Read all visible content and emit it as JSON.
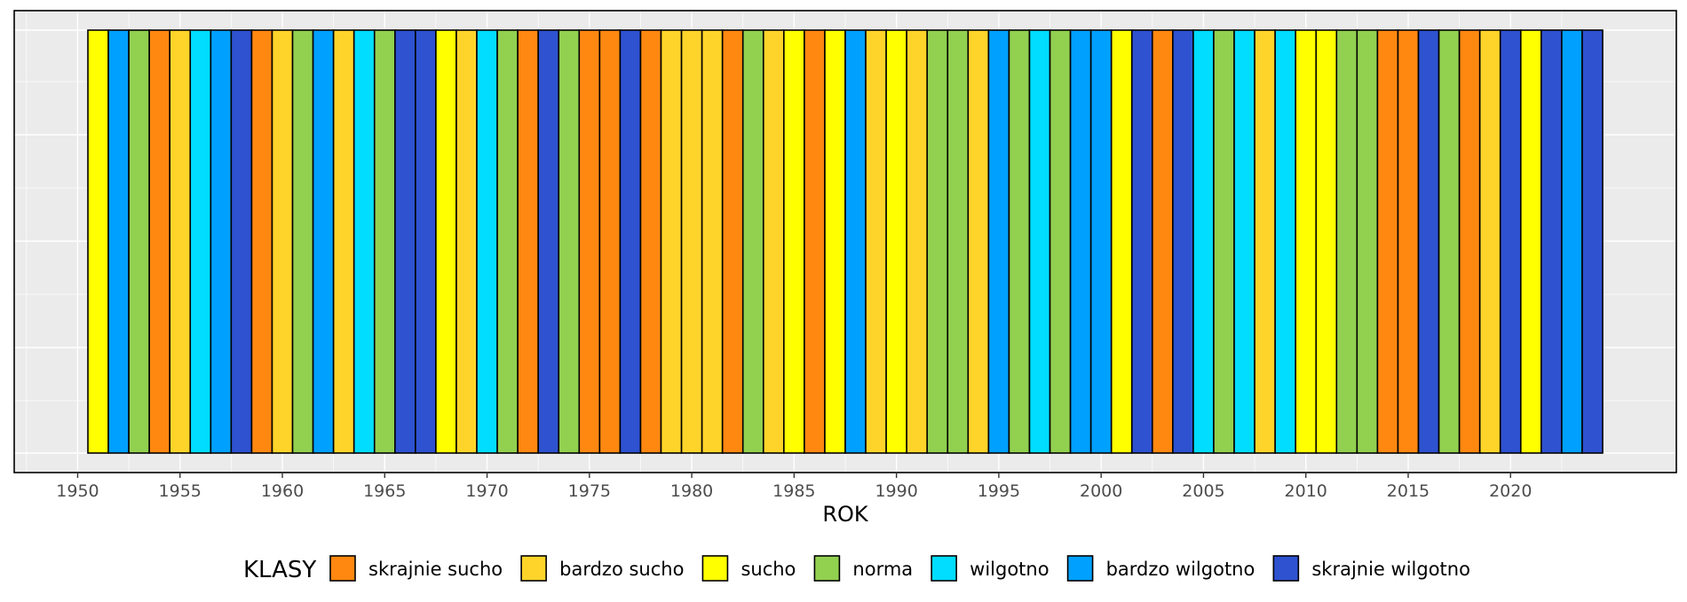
{
  "chart_data": {
    "type": "bar",
    "xlabel": "ROK",
    "ylabel": "",
    "title": "",
    "xlim": [
      1946.9,
      2028.1
    ],
    "x_ticks": [
      1950,
      1955,
      1960,
      1965,
      1970,
      1975,
      1980,
      1985,
      1990,
      1995,
      2000,
      2005,
      2010,
      2015,
      2020
    ],
    "grid": true,
    "legend": {
      "title": "KLASY",
      "position": "bottom",
      "entries": [
        {
          "key": "skrajnie_sucho",
          "label": "skrajnie sucho",
          "color": "#FF8811"
        },
        {
          "key": "bardzo_sucho",
          "label": "bardzo sucho",
          "color": "#FFD42A"
        },
        {
          "key": "sucho",
          "label": "sucho",
          "color": "#FFFF00"
        },
        {
          "key": "norma",
          "label": "norma",
          "color": "#92D050"
        },
        {
          "key": "wilgotno",
          "label": "wilgotno",
          "color": "#00DDFF"
        },
        {
          "key": "bardzo_wilgotno",
          "label": "bardzo wilgotno",
          "color": "#00A0FF"
        },
        {
          "key": "skrajnie_wilgotno",
          "label": "skrajnie wilgotno",
          "color": "#2E52D0"
        }
      ]
    },
    "years": [
      1951,
      1952,
      1953,
      1954,
      1955,
      1956,
      1957,
      1958,
      1959,
      1960,
      1961,
      1962,
      1963,
      1964,
      1965,
      1966,
      1967,
      1968,
      1969,
      1970,
      1971,
      1972,
      1973,
      1974,
      1975,
      1976,
      1977,
      1978,
      1979,
      1980,
      1981,
      1982,
      1983,
      1984,
      1985,
      1986,
      1987,
      1988,
      1989,
      1990,
      1991,
      1992,
      1993,
      1994,
      1995,
      1996,
      1997,
      1998,
      1999,
      2000,
      2001,
      2002,
      2003,
      2004,
      2005,
      2006,
      2007,
      2008,
      2009,
      2010,
      2011,
      2012,
      2013,
      2014,
      2015,
      2016,
      2017,
      2018,
      2019,
      2020,
      2021,
      2022,
      2023,
      2024
    ],
    "classes": [
      "sucho",
      "bardzo_wilgotno",
      "norma",
      "skrajnie_sucho",
      "bardzo_sucho",
      "wilgotno",
      "bardzo_wilgotno",
      "skrajnie_wilgotno",
      "skrajnie_sucho",
      "bardzo_sucho",
      "norma",
      "bardzo_wilgotno",
      "bardzo_sucho",
      "wilgotno",
      "norma",
      "skrajnie_wilgotno",
      "skrajnie_wilgotno",
      "sucho",
      "bardzo_sucho",
      "wilgotno",
      "norma",
      "skrajnie_sucho",
      "skrajnie_wilgotno",
      "norma",
      "skrajnie_sucho",
      "skrajnie_sucho",
      "skrajnie_wilgotno",
      "skrajnie_sucho",
      "bardzo_sucho",
      "bardzo_sucho",
      "bardzo_sucho",
      "skrajnie_sucho",
      "norma",
      "bardzo_sucho",
      "sucho",
      "skrajnie_sucho",
      "sucho",
      "bardzo_wilgotno",
      "bardzo_sucho",
      "sucho",
      "bardzo_sucho",
      "norma",
      "norma",
      "bardzo_sucho",
      "bardzo_wilgotno",
      "norma",
      "wilgotno",
      "norma",
      "bardzo_wilgotno",
      "bardzo_wilgotno",
      "sucho",
      "skrajnie_wilgotno",
      "skrajnie_sucho",
      "skrajnie_wilgotno",
      "wilgotno",
      "norma",
      "wilgotno",
      "bardzo_sucho",
      "wilgotno",
      "sucho",
      "sucho",
      "norma",
      "norma",
      "skrajnie_sucho",
      "skrajnie_sucho",
      "skrajnie_wilgotno",
      "norma",
      "skrajnie_sucho",
      "bardzo_sucho",
      "skrajnie_wilgotno",
      "sucho",
      "skrajnie_wilgotno",
      "bardzo_wilgotno",
      "skrajnie_wilgotno"
    ]
  },
  "style": {
    "panel_background": "#EBEBEB",
    "grid_color": "#FFFFFF",
    "bar_outline": "#000000"
  }
}
